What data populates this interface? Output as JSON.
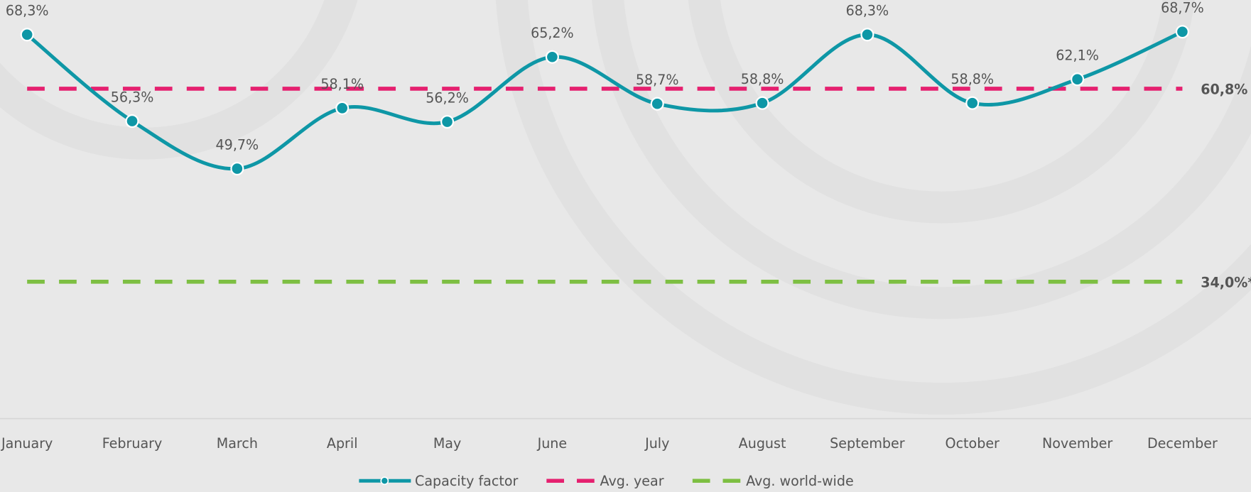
{
  "chart_data": {
    "type": "line",
    "categories": [
      "January",
      "February",
      "March",
      "April",
      "May",
      "June",
      "July",
      "August",
      "September",
      "October",
      "November",
      "December"
    ],
    "ylim": [
      15,
      72
    ],
    "series": [
      {
        "name": "Capacity factor",
        "color": "#0e97a6",
        "values": [
          68.3,
          56.3,
          49.7,
          58.1,
          56.2,
          65.2,
          58.7,
          58.8,
          68.3,
          58.8,
          62.1,
          68.7
        ],
        "value_labels": [
          "68,3%",
          "56,3%",
          "49,7%",
          "58,1%",
          "56,2%",
          "65,2%",
          "58,7%",
          "58,8%",
          "68,3%",
          "58,8%",
          "62,1%",
          "68,7%"
        ]
      }
    ],
    "reference_lines": [
      {
        "name": "Avg. year",
        "value": 60.8,
        "label": "60,8%",
        "color": "#e5206f"
      },
      {
        "name": "Avg. world-wide",
        "value": 34.0,
        "label": "34,0%*",
        "color": "#7dbf42"
      }
    ]
  }
}
